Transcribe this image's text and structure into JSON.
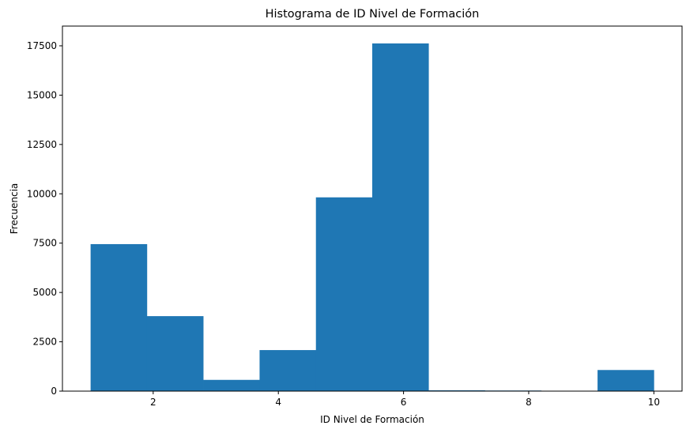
{
  "chart_data": {
    "type": "bar",
    "subtype": "histogram",
    "title": "Histograma de ID Nivel de Formación",
    "xlabel": "ID Nivel de Formación",
    "ylabel": "Frecuencia",
    "xlim": [
      0.55,
      10.45
    ],
    "ylim": [
      0,
      18500
    ],
    "x_ticks": [
      2,
      4,
      6,
      8,
      10
    ],
    "x_tick_labels": [
      "2",
      "4",
      "6",
      "8",
      "10"
    ],
    "y_ticks": [
      0,
      2500,
      5000,
      7500,
      10000,
      12500,
      15000,
      17500
    ],
    "y_tick_labels": [
      "0",
      "2500",
      "5000",
      "7500",
      "10000",
      "12500",
      "15000",
      "17500"
    ],
    "bin_edges": [
      1.0,
      1.9,
      2.8,
      3.7,
      4.6,
      5.5,
      6.4,
      7.3,
      8.2,
      9.1,
      10.0
    ],
    "values": [
      7450,
      3800,
      570,
      2080,
      9820,
      17620,
      40,
      30,
      0,
      1070
    ],
    "grid": false,
    "legend": "none",
    "bar_color": "#1f77b4"
  }
}
